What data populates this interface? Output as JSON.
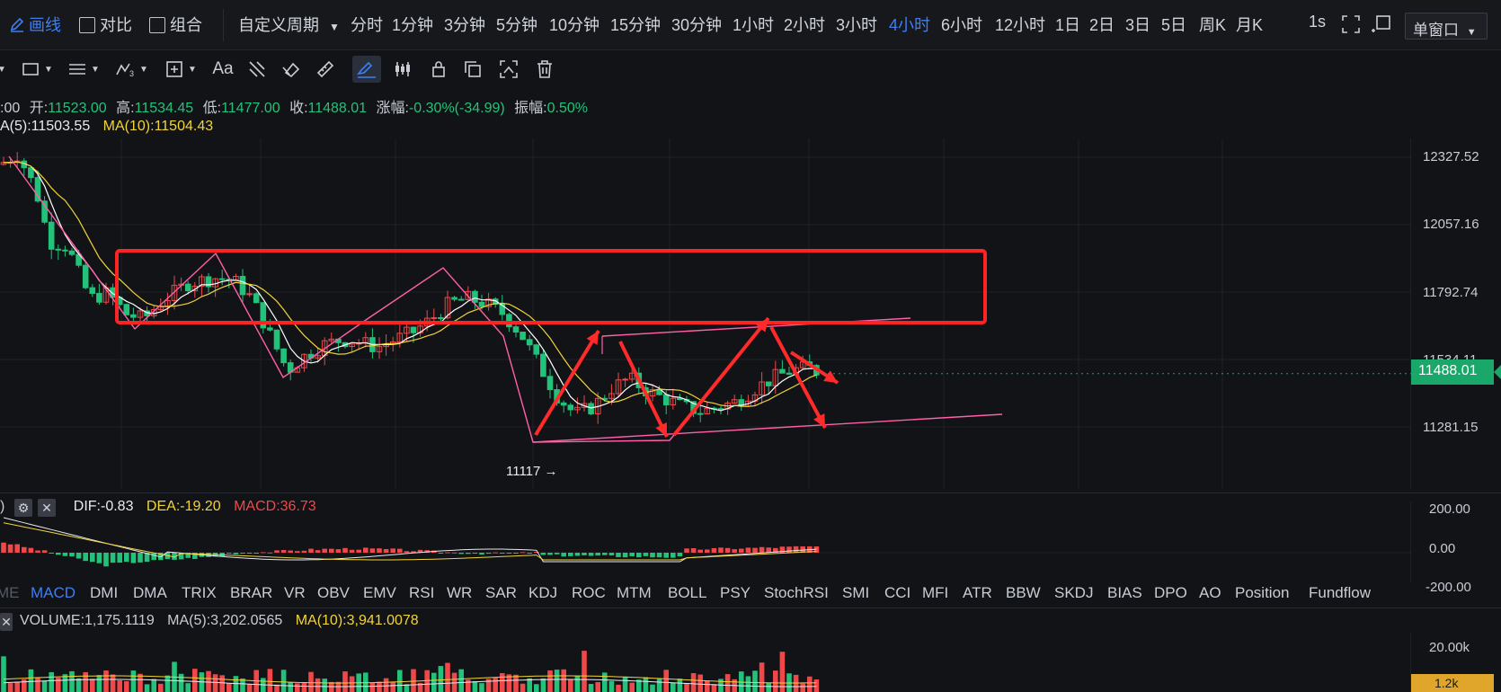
{
  "topbar": {
    "draw_label": "画线",
    "compare_label": "对比",
    "combo_label": "组合",
    "custom_period": "自定义周期",
    "periods": [
      "分时",
      "1分钟",
      "3分钟",
      "5分钟",
      "10分钟",
      "15分钟",
      "30分钟",
      "1小时",
      "2小时",
      "3小时",
      "4小时",
      "6小时",
      "12小时",
      "1日",
      "2日",
      "3日",
      "5日",
      "周K",
      "月K"
    ],
    "active_period": "4小时",
    "refresh_rate": "1s",
    "window_mode": "单窗口"
  },
  "info": {
    "time_fragment": ":00",
    "open_label": "开:",
    "open": "11523.00",
    "high_label": "高:",
    "high": "11534.45",
    "low_label": "低:",
    "low": "11477.00",
    "close_label": "收:",
    "close": "11488.01",
    "change_label": "涨幅:",
    "change": "-0.30%(-34.99)",
    "amplitude_label": "振幅:",
    "amplitude": "0.50%",
    "ma5": "A(5):11503.55",
    "ma10": "MA(10):11504.43"
  },
  "price_axis": [
    "12327.52",
    "12057.16",
    "11792.74",
    "11534.11",
    "11281.15"
  ],
  "current_price": "11488.01",
  "annotation_low": "11117 →",
  "macd": {
    "prefix": ")",
    "dif": "DIF:-0.83",
    "dea": "DEA:-19.20",
    "macd": "MACD:36.73",
    "axis": [
      "200.00",
      "0.00",
      "-200.00"
    ]
  },
  "indicators": [
    "ME",
    "MACD",
    "DMI",
    "DMA",
    "TRIX",
    "BRAR",
    "VR",
    "OBV",
    "EMV",
    "RSI",
    "WR",
    "SAR",
    "KDJ",
    "ROC",
    "MTM",
    "BOLL",
    "PSY",
    "StochRSI",
    "SMI",
    "CCI",
    "MFI",
    "ATR",
    "BBW",
    "SKDJ",
    "BIAS",
    "DPO",
    "AO",
    "Position",
    "Fundflow"
  ],
  "active_indicator": "MACD",
  "volume": {
    "label": "VOLUME:1,175.1119",
    "ma5": "MA(5):3,202.0565",
    "ma10": "MA(10):3,941.0078",
    "axis": "20.00k",
    "current": "1.2k"
  },
  "colors": {
    "up": "#f04848",
    "down": "#23c27a",
    "ma5": "#ffffff",
    "ma10": "#f0d43a",
    "trend": "#ff5fa8",
    "box": "#ff2424",
    "accent": "#3d7ef5"
  }
}
